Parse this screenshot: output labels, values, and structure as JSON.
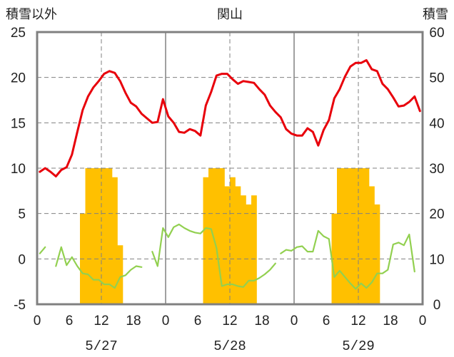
{
  "chart_data": {
    "type": "line",
    "title": "関山",
    "left_axis_label": "積雪以外",
    "right_axis_label": "積雪",
    "left_ylim": [
      -5,
      25
    ],
    "left_ticks": [
      "25",
      "20",
      "15",
      "10",
      "5",
      "0",
      "-5"
    ],
    "right_ylim": [
      0,
      60
    ],
    "right_ticks": [
      "60",
      "50",
      "40",
      "30",
      "20",
      "10",
      "0"
    ],
    "x_hours": [
      0,
      72
    ],
    "x_tick_labels": [
      "0",
      "6",
      "12",
      "18",
      "0",
      "6",
      "12",
      "18",
      "0",
      "6",
      "12",
      "18",
      "0"
    ],
    "dates": [
      "5/27",
      "5/28",
      "5/29"
    ],
    "grid": true,
    "colors": {
      "temperature": "#e8000b",
      "dewpoint": "#92d050",
      "bars": "#ffc000",
      "axis": "#808080"
    },
    "series": [
      {
        "kind": "line",
        "color": "#e8000b",
        "axis": "left",
        "points": [
          [
            0,
            9.6
          ],
          [
            1,
            10
          ],
          [
            2,
            9.6
          ],
          [
            3,
            9.1
          ],
          [
            4,
            9.8
          ],
          [
            5,
            10.1
          ],
          [
            6,
            11.5
          ],
          [
            7,
            14
          ],
          [
            8,
            16.4
          ],
          [
            9,
            17.9
          ],
          [
            10,
            18.9
          ],
          [
            11,
            19.6
          ],
          [
            12,
            20.4
          ],
          [
            13,
            20.7
          ],
          [
            14,
            20.5
          ],
          [
            15,
            19.6
          ],
          [
            16,
            18.3
          ],
          [
            17,
            17.2
          ],
          [
            18,
            16.8
          ],
          [
            19,
            16
          ],
          [
            20,
            15.5
          ],
          [
            21,
            15
          ],
          [
            22,
            15.1
          ],
          [
            23,
            17.6
          ],
          [
            24,
            15.7
          ],
          [
            25,
            15
          ],
          [
            26,
            14
          ],
          [
            27,
            13.9
          ],
          [
            28,
            14.3
          ],
          [
            29,
            14.1
          ],
          [
            30,
            13.6
          ],
          [
            31,
            16.9
          ],
          [
            32,
            18.4
          ],
          [
            33,
            20.2
          ],
          [
            34,
            20.4
          ],
          [
            35,
            20.4
          ],
          [
            36,
            19.8
          ],
          [
            37,
            19.3
          ],
          [
            38,
            19.6
          ],
          [
            39,
            19.5
          ],
          [
            40,
            19.4
          ],
          [
            41,
            18.7
          ],
          [
            42,
            18.1
          ],
          [
            43,
            16.9
          ],
          [
            44,
            16.2
          ],
          [
            45,
            15.6
          ],
          [
            46,
            14.3
          ],
          [
            47,
            13.8
          ],
          [
            48,
            13.6
          ],
          [
            49,
            13.6
          ],
          [
            50,
            14.4
          ],
          [
            51,
            14
          ],
          [
            52,
            12.5
          ],
          [
            53,
            14.2
          ],
          [
            54,
            15.3
          ],
          [
            55,
            17.7
          ],
          [
            56,
            18.7
          ],
          [
            57,
            20.1
          ],
          [
            58,
            21.2
          ],
          [
            59,
            21.6
          ],
          [
            60,
            21.6
          ],
          [
            61,
            21.9
          ],
          [
            62,
            20.9
          ],
          [
            63,
            20.7
          ],
          [
            64,
            19.3
          ],
          [
            65,
            18.7
          ],
          [
            66,
            17.8
          ],
          [
            67,
            16.8
          ],
          [
            68,
            16.9
          ],
          [
            69,
            17.3
          ],
          [
            70,
            17.9
          ],
          [
            71,
            16.3
          ]
        ]
      },
      {
        "kind": "line",
        "color": "#92d050",
        "axis": "left",
        "segments": [
          [
            [
              0,
              0.6
            ],
            [
              1,
              1.3
            ]
          ],
          [
            [
              3,
              -0.8
            ],
            [
              4,
              1.3
            ],
            [
              5,
              -0.7
            ],
            [
              6,
              0.2
            ],
            [
              7,
              -0.8
            ],
            [
              8,
              -1.6
            ],
            [
              9,
              -1.7
            ],
            [
              10,
              -2.3
            ],
            [
              11,
              -2.3
            ],
            [
              12,
              -2.8
            ],
            [
              13,
              -2.8
            ],
            [
              14,
              -3.2
            ],
            [
              15,
              -2
            ],
            [
              16,
              -1.8
            ],
            [
              17,
              -1.2
            ],
            [
              18,
              -0.8
            ],
            [
              19,
              -0.9
            ]
          ],
          [
            [
              21,
              0.8
            ],
            [
              22,
              -0.8
            ],
            [
              23,
              3.4
            ],
            [
              24,
              2.4
            ],
            [
              25,
              3.5
            ],
            [
              26,
              3.8
            ],
            [
              27,
              3.4
            ],
            [
              28,
              3.1
            ],
            [
              29,
              2.9
            ],
            [
              30,
              2.8
            ],
            [
              31,
              3.4
            ],
            [
              32,
              3.3
            ],
            [
              33,
              1.2
            ],
            [
              34,
              -3
            ],
            [
              35,
              -2.8
            ],
            [
              36,
              -2.8
            ],
            [
              37,
              -3
            ],
            [
              38,
              -3.1
            ],
            [
              39,
              -2.4
            ],
            [
              40,
              -2.4
            ],
            [
              41,
              -2.1
            ],
            [
              42,
              -1.7
            ],
            [
              43,
              -1.2
            ],
            [
              44,
              -0.5
            ]
          ],
          [
            [
              45,
              0.6
            ],
            [
              46,
              1
            ],
            [
              47,
              0.9
            ],
            [
              48,
              1.3
            ],
            [
              49,
              1.4
            ],
            [
              50,
              0.8
            ],
            [
              51,
              0.8
            ],
            [
              52,
              3.1
            ],
            [
              53,
              2.5
            ],
            [
              54,
              2.2
            ],
            [
              55,
              -2
            ],
            [
              56,
              -1.3
            ],
            [
              57,
              -2
            ],
            [
              58,
              -2.7
            ],
            [
              59,
              -3.3
            ],
            [
              60,
              -2.7
            ],
            [
              61,
              -3.2
            ],
            [
              62,
              -2.6
            ],
            [
              63,
              -1.6
            ],
            [
              64,
              -1.6
            ],
            [
              65,
              -1.2
            ],
            [
              66,
              1.6
            ],
            [
              67,
              1.8
            ],
            [
              68,
              1.5
            ],
            [
              69,
              2.7
            ],
            [
              70,
              -1.4
            ]
          ]
        ]
      },
      {
        "kind": "bar",
        "color": "#ffc000",
        "axis": "right",
        "bins": [
          [
            8,
            20
          ],
          [
            9,
            30
          ],
          [
            10,
            30
          ],
          [
            11,
            30
          ],
          [
            12,
            30
          ],
          [
            13,
            30
          ],
          [
            14,
            28
          ],
          [
            15,
            13
          ],
          [
            31,
            28
          ],
          [
            32,
            30
          ],
          [
            33,
            30
          ],
          [
            34,
            30
          ],
          [
            35,
            26
          ],
          [
            36,
            28
          ],
          [
            37,
            26
          ],
          [
            38,
            24
          ],
          [
            39,
            22
          ],
          [
            40,
            24
          ],
          [
            55,
            20
          ],
          [
            56,
            30
          ],
          [
            57,
            30
          ],
          [
            58,
            30
          ],
          [
            59,
            30
          ],
          [
            60,
            30
          ],
          [
            61,
            30
          ],
          [
            62,
            26
          ],
          [
            63,
            22
          ]
        ]
      }
    ]
  }
}
